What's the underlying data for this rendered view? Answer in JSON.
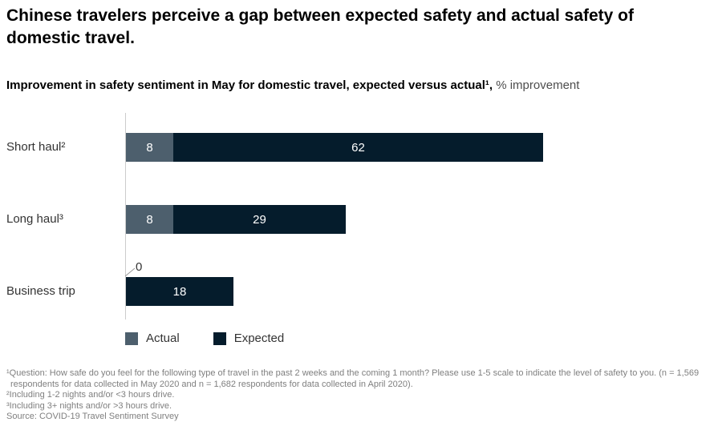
{
  "title": "Chinese travelers perceive a gap between expected safety and actual safety of domestic travel.",
  "subtitle": {
    "bold": "Improvement in safety sentiment in May for domestic travel, expected versus actual¹,",
    "regular": " % improvement"
  },
  "chart_data": {
    "type": "bar",
    "orientation": "horizontal",
    "stacked": true,
    "title": "Improvement in safety sentiment in May for domestic travel, expected versus actual¹, % improvement",
    "categories": [
      "Short haul²",
      "Long haul³",
      "Business trip"
    ],
    "series": [
      {
        "name": "Actual",
        "color": "#4d5f6d",
        "values": [
          8,
          8,
          0
        ]
      },
      {
        "name": "Expected",
        "color": "#051c2c",
        "values": [
          62,
          29,
          18
        ]
      }
    ],
    "xlim": [
      0,
      70
    ],
    "grid": false,
    "legend_position": "bottom",
    "value_labels": "inside, white",
    "zero_callout": {
      "category": "Business trip",
      "series": "Actual",
      "label": "0"
    }
  },
  "footnotes": [
    "¹Question: How safe do you feel for the following type of travel in the past 2 weeks and the coming 1 month? Please use 1-5 scale to indicate the level of safety to you. (n = 1,569 respondents for data collected in May 2020 and n = 1,682 respondents for data collected in April 2020).",
    "²Including 1-2 nights and/or <3 hours drive.",
    "³Including 3+ nights and/or >3 hours drive.",
    " Source: COVID-19 Travel Sentiment Survey"
  ]
}
